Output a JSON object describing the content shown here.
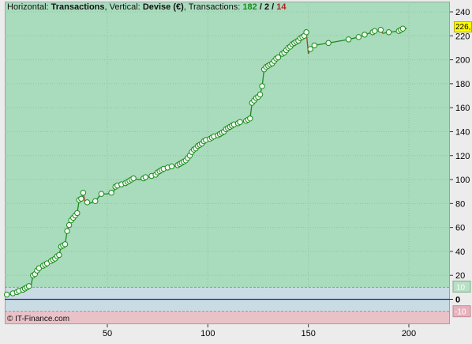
{
  "header": {
    "horizontal_label": "Horizontal:",
    "horizontal_value": "Transactions",
    "vertical_label": ", Vertical:",
    "vertical_value": "Devise (€)",
    "trans_label": ", Transactions:",
    "trans_total": "182",
    "sep1": "/",
    "trans_mid": "2",
    "sep2": "/",
    "trans_neg": "14"
  },
  "copyright": "© IT-Finance.com",
  "last_value_label": "226,",
  "colors": {
    "plot_bg": "#a9dbbd",
    "band_neutral": "#c9dbe3",
    "band_negative": "#e9c2c8",
    "line_up": "#1a8c1a",
    "line_down": "#c0392b",
    "zero_line": "#1b2fa8",
    "marker_fill": "#f2fbf2",
    "marker_stroke": "#1a8c1a"
  },
  "chart_data": {
    "type": "line",
    "xlim": [
      0,
      220
    ],
    "ylim": [
      -20,
      245
    ],
    "y_ticks": [
      240,
      220,
      200,
      180,
      160,
      140,
      120,
      100,
      80,
      60,
      40,
      20,
      0
    ],
    "band_ticks": [
      10,
      -10
    ],
    "x_ticks": [
      50,
      100,
      150,
      200
    ],
    "band_top": 10,
    "band_bottom": -10,
    "grid": true,
    "series": [
      {
        "values": [
          [
            0,
            4
          ],
          [
            2,
            4
          ],
          [
            3,
            5
          ],
          [
            5,
            6
          ],
          [
            6,
            7
          ],
          [
            8,
            8
          ],
          [
            9,
            9
          ],
          [
            10,
            10
          ],
          [
            11,
            11
          ],
          [
            12,
            11
          ],
          [
            13,
            20
          ],
          [
            14,
            21
          ],
          [
            15,
            24
          ],
          [
            16,
            26
          ],
          [
            18,
            28
          ],
          [
            19,
            29
          ],
          [
            20,
            30
          ],
          [
            22,
            32
          ],
          [
            23,
            33
          ],
          [
            24,
            34
          ],
          [
            25,
            36
          ],
          [
            26,
            37
          ],
          [
            27,
            44
          ],
          [
            28,
            45
          ],
          [
            29,
            46
          ],
          [
            30,
            57
          ],
          [
            31,
            62
          ],
          [
            32,
            66
          ],
          [
            33,
            68
          ],
          [
            34,
            70
          ],
          [
            35,
            72
          ],
          [
            36,
            83
          ],
          [
            37,
            84
          ],
          [
            38,
            89
          ],
          [
            39,
            80
          ],
          [
            40,
            81
          ],
          [
            41,
            80
          ],
          [
            44,
            82
          ],
          [
            47,
            88
          ],
          [
            50,
            88
          ],
          [
            52,
            89
          ],
          [
            53,
            89
          ],
          [
            54,
            94
          ],
          [
            55,
            95
          ],
          [
            57,
            96
          ],
          [
            59,
            97
          ],
          [
            60,
            98
          ],
          [
            61,
            99
          ],
          [
            62,
            100
          ],
          [
            63,
            101
          ],
          [
            65,
            100
          ],
          [
            67,
            100
          ],
          [
            68,
            101
          ],
          [
            69,
            102
          ],
          [
            70,
            102
          ],
          [
            71,
            102
          ],
          [
            72,
            103
          ],
          [
            73,
            103
          ],
          [
            74,
            104
          ],
          [
            75,
            106
          ],
          [
            76,
            107
          ],
          [
            77,
            108
          ],
          [
            78,
            109
          ],
          [
            79,
            109
          ],
          [
            80,
            110
          ],
          [
            81,
            110
          ],
          [
            82,
            111
          ],
          [
            83,
            111
          ],
          [
            85,
            112
          ],
          [
            86,
            113
          ],
          [
            87,
            114
          ],
          [
            88,
            115
          ],
          [
            89,
            116
          ],
          [
            90,
            118
          ],
          [
            91,
            120
          ],
          [
            92,
            123
          ],
          [
            93,
            125
          ],
          [
            94,
            126
          ],
          [
            95,
            128
          ],
          [
            96,
            129
          ],
          [
            97,
            130
          ],
          [
            98,
            132
          ],
          [
            99,
            133
          ],
          [
            100,
            133
          ],
          [
            101,
            134
          ],
          [
            102,
            135
          ],
          [
            103,
            136
          ],
          [
            104,
            136
          ],
          [
            105,
            137
          ],
          [
            106,
            138
          ],
          [
            107,
            139
          ],
          [
            108,
            140
          ],
          [
            109,
            142
          ],
          [
            110,
            143
          ],
          [
            111,
            144
          ],
          [
            112,
            145
          ],
          [
            113,
            146
          ],
          [
            114,
            146
          ],
          [
            115,
            147
          ],
          [
            116,
            148
          ],
          [
            117,
            148
          ],
          [
            118,
            148
          ],
          [
            119,
            149
          ],
          [
            120,
            150
          ],
          [
            121,
            151
          ],
          [
            122,
            164
          ],
          [
            123,
            166
          ],
          [
            124,
            168
          ],
          [
            125,
            169
          ],
          [
            126,
            171
          ],
          [
            127,
            178
          ],
          [
            128,
            192
          ],
          [
            129,
            194
          ],
          [
            130,
            195
          ],
          [
            131,
            196
          ],
          [
            132,
            197
          ],
          [
            133,
            199
          ],
          [
            134,
            201
          ],
          [
            135,
            202
          ],
          [
            136,
            202
          ],
          [
            137,
            205
          ],
          [
            138,
            206
          ],
          [
            139,
            208
          ],
          [
            140,
            210
          ],
          [
            141,
            211
          ],
          [
            142,
            213
          ],
          [
            143,
            214
          ],
          [
            144,
            215
          ],
          [
            145,
            216
          ],
          [
            146,
            218
          ],
          [
            147,
            219
          ],
          [
            148,
            220
          ],
          [
            149,
            223
          ],
          [
            150,
            205
          ],
          [
            151,
            209
          ],
          [
            153,
            212
          ],
          [
            160,
            214
          ],
          [
            170,
            217
          ],
          [
            175,
            219
          ],
          [
            178,
            221
          ],
          [
            182,
            223
          ],
          [
            183,
            224
          ],
          [
            184,
            224
          ],
          [
            185,
            224
          ],
          [
            186,
            225
          ],
          [
            187,
            222
          ],
          [
            190,
            223
          ],
          [
            195,
            224
          ],
          [
            196,
            225
          ],
          [
            197,
            226
          ],
          [
            198,
            226
          ],
          [
            199,
            226
          ]
        ]
      }
    ]
  }
}
